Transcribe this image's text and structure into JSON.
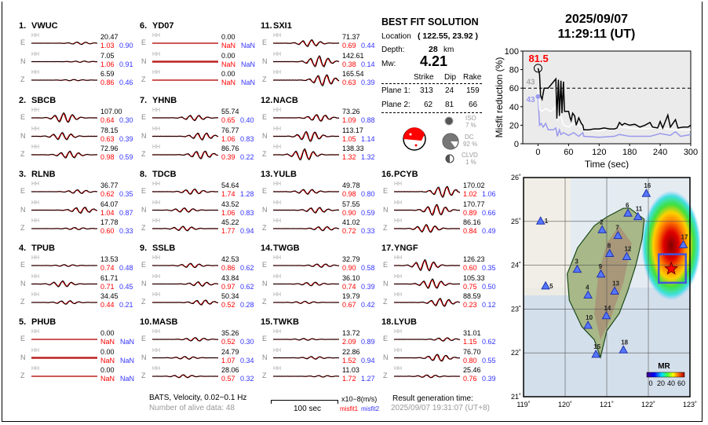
{
  "header": {
    "date": "2025/09/07",
    "time": "11:29:11  (UT)"
  },
  "best_fit": {
    "title": "BEST FIT SOLUTION",
    "location_label": "Location",
    "location_value": "( 122.55,  23.92 )",
    "depth_label": "Depth:",
    "depth_value": "28",
    "depth_unit": "km",
    "mw_label": "Mw:",
    "mw_value": "4.21",
    "columns": [
      "Strike",
      "Dip",
      "Rake"
    ],
    "planes": [
      {
        "label": "Plane 1:",
        "strike": "313",
        "dip": "24",
        "rake": "159"
      },
      {
        "label": "Plane 2:",
        "strike": "62",
        "dip": "81",
        "rake": "66"
      }
    ],
    "iso": {
      "label": "ISO",
      "value": "7  %"
    },
    "dc": {
      "label": "DC",
      "value": "92 %"
    },
    "clvd": {
      "label": "CLVD",
      "value": "1  %"
    },
    "colors": {
      "compression": "#ff0000",
      "tension": "#ffffff"
    }
  },
  "stations": [
    {
      "num": "1.",
      "name": "VWUC",
      "comps": [
        {
          "c": "E",
          "band": "HH",
          "amp": "20.47",
          "m1": "1.03",
          "m2": "0.90"
        },
        {
          "c": "N",
          "band": "HH",
          "amp": "7.05",
          "m1": "1.06",
          "m2": "0.91"
        },
        {
          "c": "Z",
          "band": "HH",
          "amp": "6.59",
          "m1": "0.86",
          "m2": "0.46"
        }
      ]
    },
    {
      "num": "2.",
      "name": "SBCB",
      "comps": [
        {
          "c": "E",
          "band": "HH",
          "amp": "107.00",
          "m1": "0.64",
          "m2": "0.30"
        },
        {
          "c": "N",
          "band": "HH",
          "amp": "78.15",
          "m1": "0.63",
          "m2": "0.39"
        },
        {
          "c": "Z",
          "band": "HH",
          "amp": "72.96",
          "m1": "0.98",
          "m2": "0.59"
        }
      ]
    },
    {
      "num": "3.",
      "name": "RLNB",
      "comps": [
        {
          "c": "E",
          "band": "HH",
          "amp": "36.77",
          "m1": "0.62",
          "m2": "0.35"
        },
        {
          "c": "N",
          "band": "HH",
          "amp": "64.07",
          "m1": "1.04",
          "m2": "0.87"
        },
        {
          "c": "Z",
          "band": "HH",
          "amp": "17.78",
          "m1": "0.60",
          "m2": "0.33"
        }
      ]
    },
    {
      "num": "4.",
      "name": "TPUB",
      "comps": [
        {
          "c": "E",
          "band": "HH",
          "amp": "13.53",
          "m1": "0.74",
          "m2": "0.48"
        },
        {
          "c": "N",
          "band": "HH",
          "amp": "61.71",
          "m1": "0.71",
          "m2": "0.45"
        },
        {
          "c": "Z",
          "band": "HH",
          "amp": "34.45",
          "m1": "0.44",
          "m2": "0.21"
        }
      ]
    },
    {
      "num": "5.",
      "name": "PHUB",
      "comps": [
        {
          "c": "E",
          "band": "HH",
          "amp": "0.00",
          "m1": "NaN",
          "m2": "NaN"
        },
        {
          "c": "N",
          "band": "HH",
          "amp": "0.00",
          "m1": "NaN",
          "m2": "NaN"
        },
        {
          "c": "Z",
          "band": "HH",
          "amp": "0.00",
          "m1": "NaN",
          "m2": "NaN"
        }
      ]
    },
    {
      "num": "6.",
      "name": "YD07",
      "comps": [
        {
          "c": "E",
          "band": "HH",
          "amp": "0.00",
          "m1": "NaN",
          "m2": "NaN"
        },
        {
          "c": "N",
          "band": "HH",
          "amp": "0.00",
          "m1": "NaN",
          "m2": "NaN"
        },
        {
          "c": "Z",
          "band": "HH",
          "amp": "0.00",
          "m1": "NaN",
          "m2": "NaN"
        }
      ]
    },
    {
      "num": "7.",
      "name": "YHNB",
      "comps": [
        {
          "c": "E",
          "band": "HH",
          "amp": "55.74",
          "m1": "0.65",
          "m2": "0.40"
        },
        {
          "c": "N",
          "band": "HH",
          "amp": "76.77",
          "m1": "1.06",
          "m2": "0.83"
        },
        {
          "c": "Z",
          "band": "HH",
          "amp": "86.76",
          "m1": "0.39",
          "m2": "0.22"
        }
      ]
    },
    {
      "num": "8.",
      "name": "TDCB",
      "comps": [
        {
          "c": "E",
          "band": "HH",
          "amp": "54.64",
          "m1": "1.74",
          "m2": "1.28"
        },
        {
          "c": "N",
          "band": "HH",
          "amp": "43.52",
          "m1": "1.06",
          "m2": "0.83"
        },
        {
          "c": "Z",
          "band": "HH",
          "amp": "45.22",
          "m1": "1.77",
          "m2": "0.94"
        }
      ]
    },
    {
      "num": "9.",
      "name": "SSLB",
      "comps": [
        {
          "c": "E",
          "band": "HH",
          "amp": "42.53",
          "m1": "0.86",
          "m2": "0.62"
        },
        {
          "c": "N",
          "band": "HH",
          "amp": "43.84",
          "m1": "0.97",
          "m2": "0.62"
        },
        {
          "c": "Z",
          "band": "HH",
          "amp": "50.34",
          "m1": "0.52",
          "m2": "0.28"
        }
      ]
    },
    {
      "num": "10.",
      "name": "MASB",
      "comps": [
        {
          "c": "E",
          "band": "HH",
          "amp": "35.26",
          "m1": "0.52",
          "m2": "0.30"
        },
        {
          "c": "N",
          "band": "HH",
          "amp": "24.79",
          "m1": "1.07",
          "m2": "0.34"
        },
        {
          "c": "Z",
          "band": "HH",
          "amp": "28.06",
          "m1": "0.57",
          "m2": "0.32"
        }
      ]
    },
    {
      "num": "11.",
      "name": "SXI1",
      "comps": [
        {
          "c": "E",
          "band": "HH",
          "amp": "71.37",
          "m1": "0.69",
          "m2": "0.44"
        },
        {
          "c": "N",
          "band": "HH",
          "amp": "142.61",
          "m1": "0.38",
          "m2": "0.14"
        },
        {
          "c": "Z",
          "band": "HH",
          "amp": "165.54",
          "m1": "0.63",
          "m2": "0.39"
        }
      ]
    },
    {
      "num": "12.",
      "name": "NACB",
      "comps": [
        {
          "c": "E",
          "band": "HH",
          "amp": "73.26",
          "m1": "1.09",
          "m2": "0.88"
        },
        {
          "c": "N",
          "band": "HH",
          "amp": "113.17",
          "m1": "1.05",
          "m2": "1.14"
        },
        {
          "c": "Z",
          "band": "HH",
          "amp": "138.33",
          "m1": "1.32",
          "m2": "1.32"
        }
      ]
    },
    {
      "num": "13.",
      "name": "YULB",
      "comps": [
        {
          "c": "E",
          "band": "HH",
          "amp": "49.78",
          "m1": "0.98",
          "m2": "0.80"
        },
        {
          "c": "N",
          "band": "HH",
          "amp": "57.55",
          "m1": "0.90",
          "m2": "0.59"
        },
        {
          "c": "Z",
          "band": "HH",
          "amp": "41.02",
          "m1": "0.72",
          "m2": "0.33"
        }
      ]
    },
    {
      "num": "14.",
      "name": "TWGB",
      "comps": [
        {
          "c": "E",
          "band": "HH",
          "amp": "32.79",
          "m1": "0.90",
          "m2": "0.58"
        },
        {
          "c": "N",
          "band": "HH",
          "amp": "36.10",
          "m1": "0.74",
          "m2": "0.39"
        },
        {
          "c": "Z",
          "band": "HH",
          "amp": "19.79",
          "m1": "0.67",
          "m2": "0.42"
        }
      ]
    },
    {
      "num": "15.",
      "name": "TWKB",
      "comps": [
        {
          "c": "E",
          "band": "HH",
          "amp": "13.72",
          "m1": "2.09",
          "m2": "0.89"
        },
        {
          "c": "N",
          "band": "HH",
          "amp": "22.86",
          "m1": "1.52",
          "m2": "0.94"
        },
        {
          "c": "Z",
          "band": "HH",
          "amp": "11.03",
          "m1": "1.72",
          "m2": "1.27"
        }
      ]
    },
    {
      "num": "16.",
      "name": "PCYB",
      "comps": [
        {
          "c": "E",
          "band": "HH",
          "amp": "170.02",
          "m1": "1.02",
          "m2": "1.06"
        },
        {
          "c": "N",
          "band": "HH",
          "amp": "170.77",
          "m1": "0.89",
          "m2": "0.66"
        },
        {
          "c": "Z",
          "band": "HH",
          "amp": "86.16",
          "m1": "0.84",
          "m2": "0.49"
        }
      ]
    },
    {
      "num": "17.",
      "name": "YNGF",
      "comps": [
        {
          "c": "E",
          "band": "HH",
          "amp": "126.23",
          "m1": "0.60",
          "m2": "0.35"
        },
        {
          "c": "N",
          "band": "HH",
          "amp": "105.33",
          "m1": "0.75",
          "m2": "0.50"
        },
        {
          "c": "Z",
          "band": "HH",
          "amp": "88.59",
          "m1": "0.23",
          "m2": "0.12"
        }
      ]
    },
    {
      "num": "18.",
      "name": "LYUB",
      "comps": [
        {
          "c": "E",
          "band": "HH",
          "amp": "31.01",
          "m1": "1.15",
          "m2": "0.62"
        },
        {
          "c": "N",
          "band": "HH",
          "amp": "76.70",
          "m1": "0.80",
          "m2": "0.55"
        },
        {
          "c": "Z",
          "band": "HH",
          "amp": "25.46",
          "m1": "0.76",
          "m2": "0.39"
        }
      ]
    }
  ],
  "footer": {
    "network": "BATS, Velocity, 0.02−0.1 Hz",
    "alive": "Number of alive data: 48",
    "scale_label": "100 sec",
    "unit": "x10−8(m/s)",
    "misfit1": "misfit1",
    "misfit2": "misfit2",
    "result_label": "Result generation time:",
    "result_time": "2025/09/07 19:31:07 (UT+8)"
  },
  "chart_data": {
    "type": "line",
    "xlabel": "Time (sec)",
    "ylabel": "Misfit reduction (%)",
    "xlim": [
      -30,
      300
    ],
    "ylim": [
      0,
      100
    ],
    "xticks": [
      0,
      60,
      120,
      180,
      240,
      300
    ],
    "yticks": [
      0,
      20,
      40,
      60,
      80,
      100
    ],
    "threshold": 60,
    "best_value_label": "81.5",
    "best_point": [
      0,
      81.5
    ],
    "label_white": "43",
    "label_blue": "43",
    "background": "#ebebeb",
    "series": [
      {
        "color": "#000000",
        "points": [
          [
            0,
            81.5
          ],
          [
            3,
            75
          ],
          [
            5,
            52
          ],
          [
            8,
            48
          ],
          [
            12,
            60
          ],
          [
            20,
            60
          ],
          [
            35,
            70
          ],
          [
            37,
            27
          ],
          [
            40,
            69
          ],
          [
            42,
            30
          ],
          [
            45,
            68
          ],
          [
            47,
            33
          ],
          [
            50,
            67
          ],
          [
            52,
            35
          ],
          [
            60,
            35
          ],
          [
            63,
            28
          ],
          [
            65,
            25
          ],
          [
            68,
            33
          ],
          [
            72,
            30
          ],
          [
            75,
            20
          ],
          [
            80,
            28
          ],
          [
            85,
            22
          ],
          [
            88,
            20
          ],
          [
            90,
            15
          ],
          [
            100,
            15
          ],
          [
            110,
            16
          ],
          [
            120,
            16
          ],
          [
            130,
            17
          ],
          [
            140,
            16
          ],
          [
            150,
            16
          ],
          [
            155,
            17
          ],
          [
            160,
            23
          ],
          [
            165,
            20
          ],
          [
            170,
            22
          ],
          [
            180,
            20
          ],
          [
            190,
            21
          ],
          [
            200,
            18
          ],
          [
            210,
            20
          ],
          [
            220,
            23
          ],
          [
            225,
            18
          ],
          [
            235,
            17
          ],
          [
            240,
            24
          ],
          [
            245,
            17
          ],
          [
            255,
            31
          ],
          [
            260,
            18
          ],
          [
            270,
            26
          ],
          [
            275,
            17
          ],
          [
            285,
            18
          ],
          [
            295,
            18
          ],
          [
            300,
            20
          ]
        ]
      },
      {
        "color": "#ffffff",
        "points": [
          [
            0,
            60
          ],
          [
            3,
            37
          ],
          [
            8,
            35
          ],
          [
            15,
            38
          ],
          [
            25,
            35
          ],
          [
            35,
            40
          ],
          [
            38,
            25
          ],
          [
            42,
            35
          ],
          [
            50,
            20
          ],
          [
            60,
            18
          ],
          [
            70,
            22
          ],
          [
            80,
            20
          ],
          [
            90,
            15
          ],
          [
            120,
            14
          ],
          [
            160,
            18
          ],
          [
            200,
            16
          ],
          [
            240,
            17
          ],
          [
            270,
            15
          ],
          [
            300,
            15
          ]
        ]
      },
      {
        "color": "#9999ee",
        "points": [
          [
            0,
            51
          ],
          [
            3,
            20
          ],
          [
            6,
            22
          ],
          [
            10,
            18
          ],
          [
            15,
            22
          ],
          [
            20,
            15
          ],
          [
            30,
            15
          ],
          [
            35,
            17
          ],
          [
            38,
            8
          ],
          [
            42,
            15
          ],
          [
            45,
            10
          ],
          [
            50,
            12
          ],
          [
            60,
            9
          ],
          [
            70,
            12
          ],
          [
            80,
            8
          ],
          [
            88,
            12
          ],
          [
            90,
            8
          ],
          [
            120,
            7
          ],
          [
            150,
            8
          ],
          [
            160,
            10
          ],
          [
            180,
            8
          ],
          [
            220,
            8
          ],
          [
            240,
            11
          ],
          [
            260,
            9
          ],
          [
            270,
            13
          ],
          [
            280,
            8
          ],
          [
            300,
            10
          ]
        ]
      }
    ]
  },
  "map": {
    "lon_ticks": [
      "119˚",
      "120˚",
      "121˚",
      "122˚",
      "123˚"
    ],
    "lat_ticks": [
      "21˚",
      "22˚",
      "23˚",
      "24˚",
      "25˚",
      "26˚"
    ],
    "lon_range": [
      119,
      123
    ],
    "lat_range": [
      21,
      26
    ],
    "epicenter": [
      122.55,
      23.92
    ],
    "colorbar_label": "MR",
    "colorbar_ticks": [
      "0",
      "20",
      "40",
      "60"
    ],
    "stations": [
      {
        "id": "1",
        "lon": 119.41,
        "lat": 25.01
      },
      {
        "id": "2",
        "lon": 120.89,
        "lat": 24.81
      },
      {
        "id": "3",
        "lon": 120.29,
        "lat": 23.91
      },
      {
        "id": "4",
        "lon": 120.55,
        "lat": 23.32
      },
      {
        "id": "5",
        "lon": 119.53,
        "lat": 23.53
      },
      {
        "id": "6",
        "lon": 121.51,
        "lat": 25.19
      },
      {
        "id": "7",
        "lon": 121.27,
        "lat": 24.68
      },
      {
        "id": "8",
        "lon": 121.07,
        "lat": 24.27
      },
      {
        "id": "9",
        "lon": 120.86,
        "lat": 23.8
      },
      {
        "id": "10",
        "lon": 120.55,
        "lat": 22.63
      },
      {
        "id": "11",
        "lon": 121.75,
        "lat": 25.11
      },
      {
        "id": "12",
        "lon": 121.48,
        "lat": 24.2
      },
      {
        "id": "13",
        "lon": 121.19,
        "lat": 23.41
      },
      {
        "id": "14",
        "lon": 120.99,
        "lat": 22.85
      },
      {
        "id": "15",
        "lon": 120.74,
        "lat": 21.97
      },
      {
        "id": "16",
        "lon": 121.95,
        "lat": 25.64
      },
      {
        "id": "17",
        "lon": 122.84,
        "lat": 24.47
      },
      {
        "id": "18",
        "lon": 121.4,
        "lat": 22.07
      }
    ]
  }
}
